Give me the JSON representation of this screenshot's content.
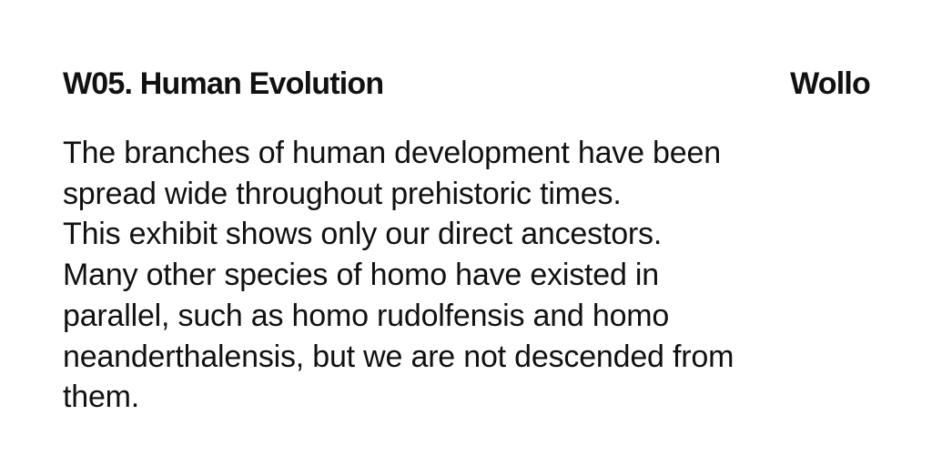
{
  "label": {
    "title": "W05. Human Evolution",
    "location": "Wollo",
    "lines": [
      "The branches of human development have been",
      "spread wide throughout prehistoric times.",
      "This exhibit shows only our direct ancestors.",
      "Many other species of homo have existed in",
      "parallel, such as homo rudolfensis and homo",
      "neanderthalensis, but we are not descended from",
      "them."
    ]
  }
}
